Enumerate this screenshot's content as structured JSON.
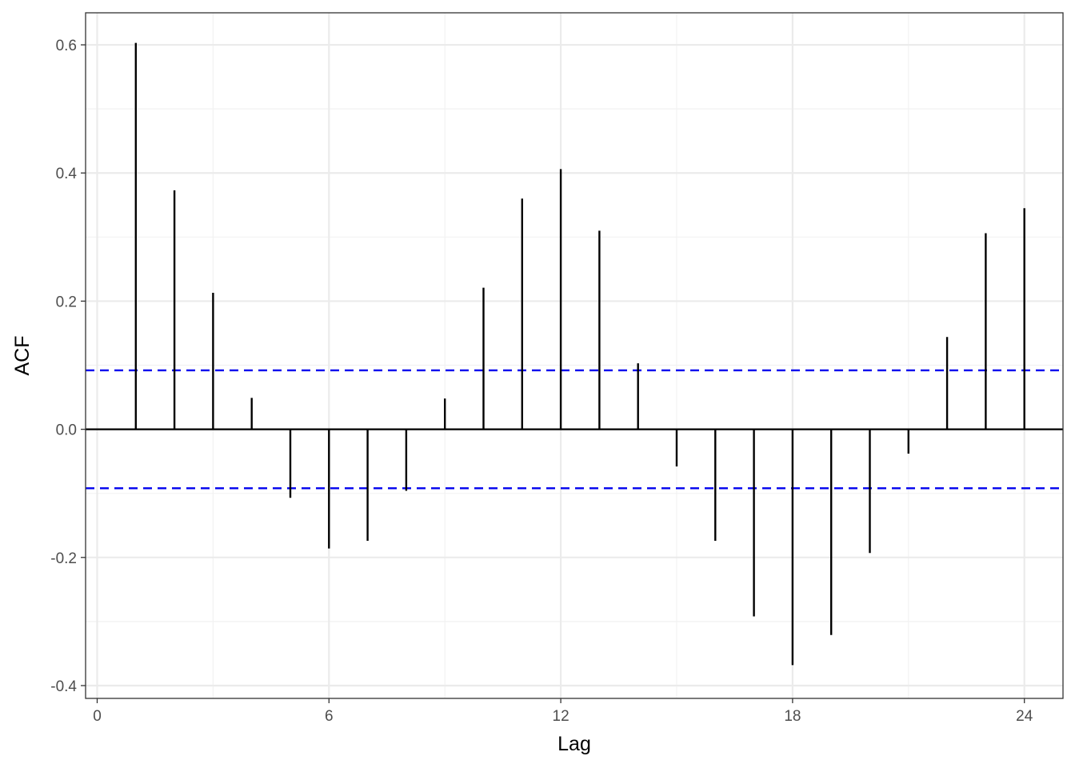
{
  "chart_data": {
    "type": "bar",
    "xlabel": "Lag",
    "ylabel": "ACF",
    "xlim": [
      -0.3,
      25
    ],
    "ylim": [
      -0.42,
      0.65
    ],
    "x_ticks": [
      0,
      6,
      12,
      18,
      24
    ],
    "x_tick_labels": [
      "0",
      "6",
      "12",
      "18",
      "24"
    ],
    "y_ticks": [
      -0.4,
      -0.2,
      0.0,
      0.2,
      0.4,
      0.6
    ],
    "y_tick_labels": [
      "-0.4",
      "-0.2",
      "0.0",
      "0.2",
      "0.4",
      "0.6"
    ],
    "lags": [
      1,
      2,
      3,
      4,
      5,
      6,
      7,
      8,
      9,
      10,
      11,
      12,
      13,
      14,
      15,
      16,
      17,
      18,
      19,
      20,
      21,
      22,
      23,
      24
    ],
    "values": [
      0.603,
      0.373,
      0.213,
      0.049,
      -0.107,
      -0.186,
      -0.174,
      -0.096,
      0.048,
      0.221,
      0.36,
      0.406,
      0.31,
      0.103,
      -0.058,
      -0.174,
      -0.292,
      -0.368,
      -0.321,
      -0.193,
      -0.038,
      0.144,
      0.306,
      0.345
    ],
    "confidence_bound": 0.092,
    "grid": true,
    "colors": {
      "bars": "#000000",
      "confidence_lines": "#0000ee",
      "grid_major": "#ebebeb",
      "grid_minor": "#f2f2f2",
      "panel_border": "#333333"
    }
  }
}
